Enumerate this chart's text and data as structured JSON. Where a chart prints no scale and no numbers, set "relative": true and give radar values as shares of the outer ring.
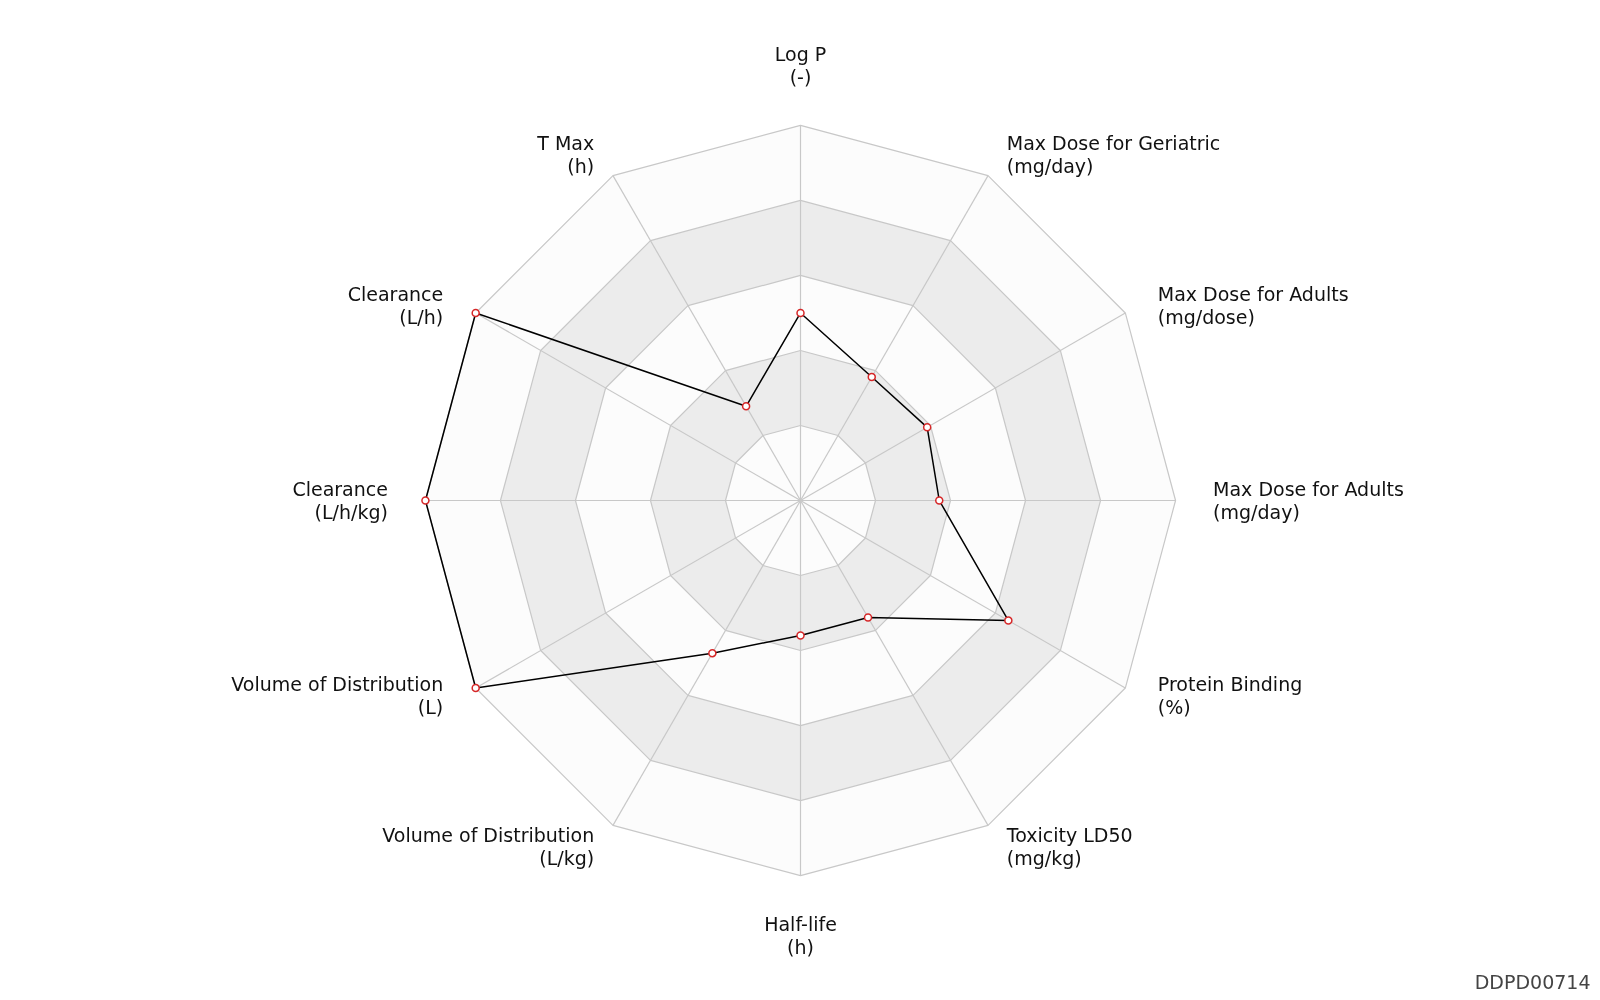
{
  "chart_data": {
    "type": "radar",
    "relative": true,
    "grid": true,
    "marker": "circle",
    "line_style": "solid",
    "categories": [
      "Log P\n(-)",
      "Max Dose for Geriatric\n(mg/day)",
      "Max Dose for Adults\n(mg/dose)",
      "Max Dose for Adults\n(mg/day)",
      "Protein Binding\n(%)",
      "Toxicity LD50\n(mg/kg)",
      "Half-life\n(h)",
      "Volume of Distribution\n(L/kg)",
      "Volume of Distribution\n(L)",
      "Clearance\n(L/h/kg)",
      "Clearance\n(L/h)",
      "T Max\n(h)"
    ],
    "series": [
      {
        "color": "#000000",
        "values": [
          0.5,
          0.38,
          0.39,
          0.37,
          0.64,
          0.36,
          0.36,
          0.47,
          1.0,
          1.0,
          1.0,
          0.29
        ]
      }
    ],
    "annotations": [
      "DDPD00714"
    ]
  }
}
